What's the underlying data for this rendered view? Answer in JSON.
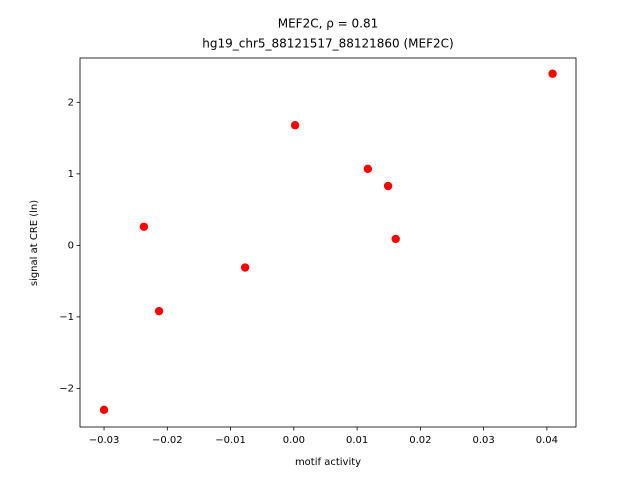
{
  "chart_data": {
    "type": "scatter",
    "title": "MEF2C, ρ = 0.81",
    "subtitle": "hg19_chr5_88121517_88121860 (MEF2C)",
    "x_label": "motif activity",
    "y_label": "signal at CRE (ln)",
    "color": "#ff0000",
    "x": [
      -0.03,
      -0.0237,
      -0.0213,
      -0.0077,
      0.0002,
      0.0117,
      0.0149,
      0.0161,
      0.0409
    ],
    "values": [
      -2.3,
      0.26,
      -0.92,
      -0.31,
      1.68,
      1.07,
      0.83,
      0.09,
      2.4
    ],
    "xlim": [
      -0.0338,
      0.0446
    ],
    "ylim": [
      -2.54,
      2.62
    ],
    "xticks": [
      {
        "value": -0.03,
        "label": "−0.03"
      },
      {
        "value": -0.02,
        "label": "−0.02"
      },
      {
        "value": -0.01,
        "label": "−0.01"
      },
      {
        "value": 0,
        "label": "0.00"
      },
      0.01,
      0.02,
      0.03,
      0.04
    ],
    "yticks": [
      {
        "value": -2,
        "label": "−2"
      },
      {
        "value": -1,
        "label": "−1"
      },
      0,
      1,
      2
    ]
  }
}
